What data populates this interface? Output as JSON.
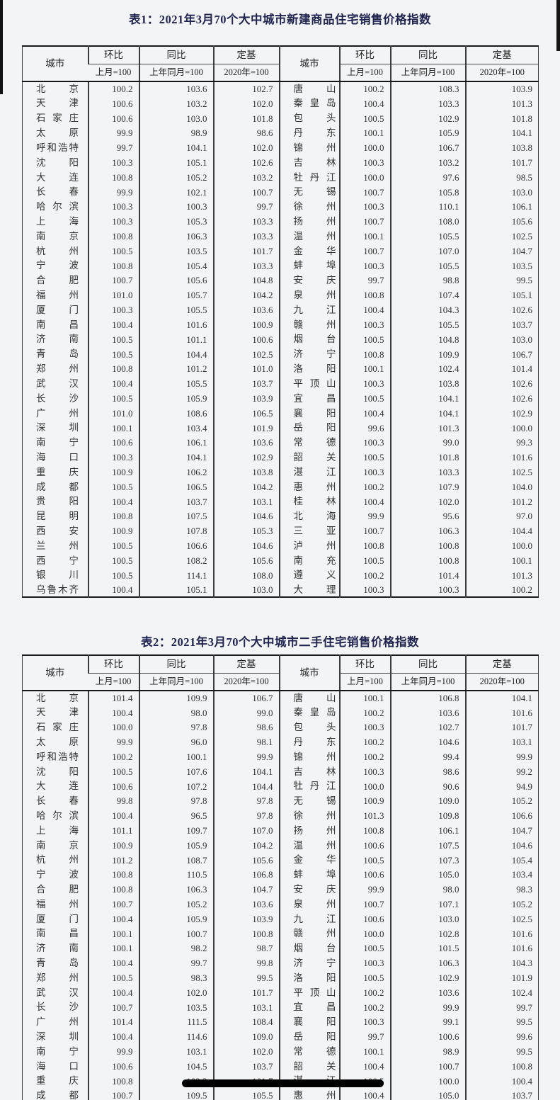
{
  "headers": {
    "city": "城市",
    "mom": "环比",
    "yoy": "同比",
    "base": "定基",
    "mom_sub": "上月=100",
    "yoy_sub": "上年同月=100",
    "base_sub": "2020年=100"
  },
  "table1": {
    "title": "表1：2021年3月70个大中城市新建商品住宅销售价格指数",
    "rows_left": [
      [
        "北京",
        "100.2",
        "103.6",
        "102.7"
      ],
      [
        "天津",
        "100.6",
        "103.2",
        "102.0"
      ],
      [
        "石家庄",
        "100.6",
        "103.0",
        "101.8"
      ],
      [
        "太原",
        "99.9",
        "98.9",
        "98.6"
      ],
      [
        "呼和浩特",
        "99.7",
        "104.1",
        "102.0"
      ],
      [
        "沈阳",
        "100.3",
        "105.1",
        "102.6"
      ],
      [
        "大连",
        "100.8",
        "105.2",
        "103.2"
      ],
      [
        "长春",
        "99.9",
        "102.1",
        "100.7"
      ],
      [
        "哈尔滨",
        "100.3",
        "100.3",
        "99.7"
      ],
      [
        "上海",
        "100.3",
        "105.3",
        "103.3"
      ],
      [
        "南京",
        "100.8",
        "106.3",
        "103.3"
      ],
      [
        "杭州",
        "100.5",
        "103.5",
        "101.7"
      ],
      [
        "宁波",
        "100.8",
        "105.4",
        "103.3"
      ],
      [
        "合肥",
        "100.7",
        "105.6",
        "104.8"
      ],
      [
        "福州",
        "101.0",
        "105.7",
        "104.2"
      ],
      [
        "厦门",
        "100.3",
        "105.5",
        "103.6"
      ],
      [
        "南昌",
        "100.4",
        "101.6",
        "100.9"
      ],
      [
        "济南",
        "100.5",
        "101.1",
        "100.6"
      ],
      [
        "青岛",
        "100.5",
        "104.4",
        "102.5"
      ],
      [
        "郑州",
        "100.8",
        "101.2",
        "101.0"
      ],
      [
        "武汉",
        "100.4",
        "105.5",
        "103.7"
      ],
      [
        "长沙",
        "100.5",
        "105.9",
        "103.9"
      ],
      [
        "广州",
        "101.0",
        "108.6",
        "106.5"
      ],
      [
        "深圳",
        "100.1",
        "103.4",
        "101.9"
      ],
      [
        "南宁",
        "100.6",
        "106.1",
        "103.6"
      ],
      [
        "海口",
        "100.3",
        "104.1",
        "102.9"
      ],
      [
        "重庆",
        "100.9",
        "106.2",
        "103.8"
      ],
      [
        "成都",
        "100.5",
        "106.5",
        "104.2"
      ],
      [
        "贵阳",
        "100.4",
        "103.7",
        "103.1"
      ],
      [
        "昆明",
        "100.8",
        "107.5",
        "104.6"
      ],
      [
        "西安",
        "100.9",
        "107.8",
        "105.3"
      ],
      [
        "兰州",
        "100.5",
        "106.6",
        "104.6"
      ],
      [
        "西宁",
        "100.5",
        "108.2",
        "105.6"
      ],
      [
        "银川",
        "100.5",
        "114.1",
        "108.0"
      ],
      [
        "乌鲁木齐",
        "100.4",
        "105.1",
        "103.0"
      ]
    ],
    "rows_right": [
      [
        "唐山",
        "100.2",
        "108.3",
        "103.9"
      ],
      [
        "秦皇岛",
        "100.4",
        "103.3",
        "101.3"
      ],
      [
        "包头",
        "100.5",
        "102.9",
        "101.8"
      ],
      [
        "丹东",
        "100.1",
        "105.9",
        "104.1"
      ],
      [
        "锦州",
        "100.0",
        "106.7",
        "103.8"
      ],
      [
        "吉林",
        "100.3",
        "103.2",
        "101.7"
      ],
      [
        "牡丹江",
        "100.0",
        "97.6",
        "98.5"
      ],
      [
        "无锡",
        "100.7",
        "105.8",
        "103.0"
      ],
      [
        "徐州",
        "100.3",
        "110.1",
        "106.1"
      ],
      [
        "扬州",
        "100.7",
        "108.0",
        "105.6"
      ],
      [
        "温州",
        "100.1",
        "105.5",
        "102.5"
      ],
      [
        "金华",
        "100.7",
        "107.0",
        "104.7"
      ],
      [
        "蚌埠",
        "100.3",
        "105.5",
        "103.5"
      ],
      [
        "安庆",
        "99.7",
        "98.8",
        "99.5"
      ],
      [
        "泉州",
        "100.8",
        "107.4",
        "105.1"
      ],
      [
        "九江",
        "100.4",
        "104.3",
        "102.6"
      ],
      [
        "赣州",
        "100.3",
        "105.5",
        "103.7"
      ],
      [
        "烟台",
        "100.5",
        "104.8",
        "103.0"
      ],
      [
        "济宁",
        "100.8",
        "109.9",
        "106.7"
      ],
      [
        "洛阳",
        "100.1",
        "102.4",
        "101.4"
      ],
      [
        "平顶山",
        "100.3",
        "103.8",
        "102.6"
      ],
      [
        "宜昌",
        "100.5",
        "104.1",
        "102.6"
      ],
      [
        "襄阳",
        "100.4",
        "104.1",
        "102.9"
      ],
      [
        "岳阳",
        "99.6",
        "101.3",
        "100.0"
      ],
      [
        "常德",
        "100.3",
        "99.0",
        "99.3"
      ],
      [
        "韶关",
        "100.5",
        "101.8",
        "101.6"
      ],
      [
        "湛江",
        "100.3",
        "103.3",
        "102.5"
      ],
      [
        "惠州",
        "100.2",
        "107.9",
        "104.0"
      ],
      [
        "桂林",
        "100.4",
        "102.0",
        "101.2"
      ],
      [
        "北海",
        "99.9",
        "95.6",
        "97.0"
      ],
      [
        "三亚",
        "100.7",
        "106.3",
        "104.4"
      ],
      [
        "泸州",
        "100.8",
        "100.8",
        "100.0"
      ],
      [
        "南充",
        "100.5",
        "100.8",
        "100.1"
      ],
      [
        "遵义",
        "100.2",
        "101.4",
        "101.3"
      ],
      [
        "大理",
        "100.3",
        "100.3",
        "100.2"
      ]
    ]
  },
  "table2": {
    "title": "表2：2021年3月70个大中城市二手住宅销售价格指数",
    "rows_left": [
      [
        "北京",
        "101.4",
        "109.9",
        "106.7"
      ],
      [
        "天津",
        "100.4",
        "98.0",
        "99.0"
      ],
      [
        "石家庄",
        "100.0",
        "97.8",
        "98.6"
      ],
      [
        "太原",
        "99.9",
        "96.0",
        "98.1"
      ],
      [
        "呼和浩特",
        "100.2",
        "100.1",
        "99.9"
      ],
      [
        "沈阳",
        "100.5",
        "107.6",
        "104.1"
      ],
      [
        "大连",
        "100.6",
        "107.2",
        "104.4"
      ],
      [
        "长春",
        "99.8",
        "97.8",
        "97.8"
      ],
      [
        "哈尔滨",
        "100.4",
        "96.5",
        "97.8"
      ],
      [
        "上海",
        "101.1",
        "109.7",
        "107.0"
      ],
      [
        "南京",
        "100.9",
        "105.9",
        "104.2"
      ],
      [
        "杭州",
        "101.2",
        "108.7",
        "105.6"
      ],
      [
        "宁波",
        "100.8",
        "110.5",
        "106.8"
      ],
      [
        "合肥",
        "100.8",
        "106.3",
        "104.7"
      ],
      [
        "福州",
        "100.7",
        "105.2",
        "103.6"
      ],
      [
        "厦门",
        "100.4",
        "105.9",
        "103.9"
      ],
      [
        "南昌",
        "100.1",
        "100.7",
        "100.8"
      ],
      [
        "济南",
        "100.1",
        "98.2",
        "98.7"
      ],
      [
        "青岛",
        "100.4",
        "99.7",
        "99.8"
      ],
      [
        "郑州",
        "100.5",
        "98.3",
        "99.5"
      ],
      [
        "武汉",
        "100.4",
        "102.0",
        "101.7"
      ],
      [
        "长沙",
        "100.7",
        "103.5",
        "103.1"
      ],
      [
        "广州",
        "101.4",
        "111.5",
        "108.4"
      ],
      [
        "深圳",
        "100.4",
        "114.6",
        "109.0"
      ],
      [
        "南宁",
        "99.9",
        "103.1",
        "102.0"
      ],
      [
        "海口",
        "100.6",
        "104.5",
        "103.7"
      ],
      [
        "重庆",
        "100.8",
        "102.3",
        "101.7"
      ],
      [
        "成都",
        "100.7",
        "109.5",
        "105.5"
      ]
    ],
    "rows_right": [
      [
        "唐山",
        "100.1",
        "106.8",
        "104.1"
      ],
      [
        "秦皇岛",
        "100.2",
        "103.6",
        "101.6"
      ],
      [
        "包头",
        "100.3",
        "102.7",
        "101.7"
      ],
      [
        "丹东",
        "100.2",
        "104.6",
        "103.1"
      ],
      [
        "锦州",
        "100.2",
        "99.4",
        "99.9"
      ],
      [
        "吉林",
        "100.3",
        "98.6",
        "99.2"
      ],
      [
        "牡丹江",
        "100.0",
        "90.6",
        "94.9"
      ],
      [
        "无锡",
        "100.9",
        "109.0",
        "105.2"
      ],
      [
        "徐州",
        "101.3",
        "109.8",
        "106.6"
      ],
      [
        "扬州",
        "100.8",
        "106.1",
        "104.7"
      ],
      [
        "温州",
        "100.6",
        "107.5",
        "104.6"
      ],
      [
        "金华",
        "100.5",
        "107.3",
        "105.4"
      ],
      [
        "蚌埠",
        "100.6",
        "105.0",
        "103.4"
      ],
      [
        "安庆",
        "99.9",
        "98.0",
        "98.3"
      ],
      [
        "泉州",
        "100.7",
        "107.1",
        "105.2"
      ],
      [
        "九江",
        "100.6",
        "103.0",
        "102.5"
      ],
      [
        "赣州",
        "100.0",
        "102.8",
        "101.6"
      ],
      [
        "烟台",
        "100.5",
        "101.5",
        "101.6"
      ],
      [
        "济宁",
        "100.3",
        "106.3",
        "104.3"
      ],
      [
        "洛阳",
        "100.5",
        "102.9",
        "101.9"
      ],
      [
        "平顶山",
        "100.2",
        "103.6",
        "102.4"
      ],
      [
        "宜昌",
        "100.2",
        "99.9",
        "99.7"
      ],
      [
        "襄阳",
        "100.3",
        "99.1",
        "99.5"
      ],
      [
        "岳阳",
        "99.7",
        "100.6",
        "99.6"
      ],
      [
        "常德",
        "100.1",
        "98.9",
        "99.5"
      ],
      [
        "韶关",
        "100.4",
        "100.7",
        "100.8"
      ],
      [
        "湛江",
        "100.5",
        "100.0",
        "100.4"
      ],
      [
        "惠州",
        "100.4",
        "105.0",
        "103.7"
      ]
    ]
  },
  "annotation": {
    "strike_bar_color": "#000000"
  }
}
